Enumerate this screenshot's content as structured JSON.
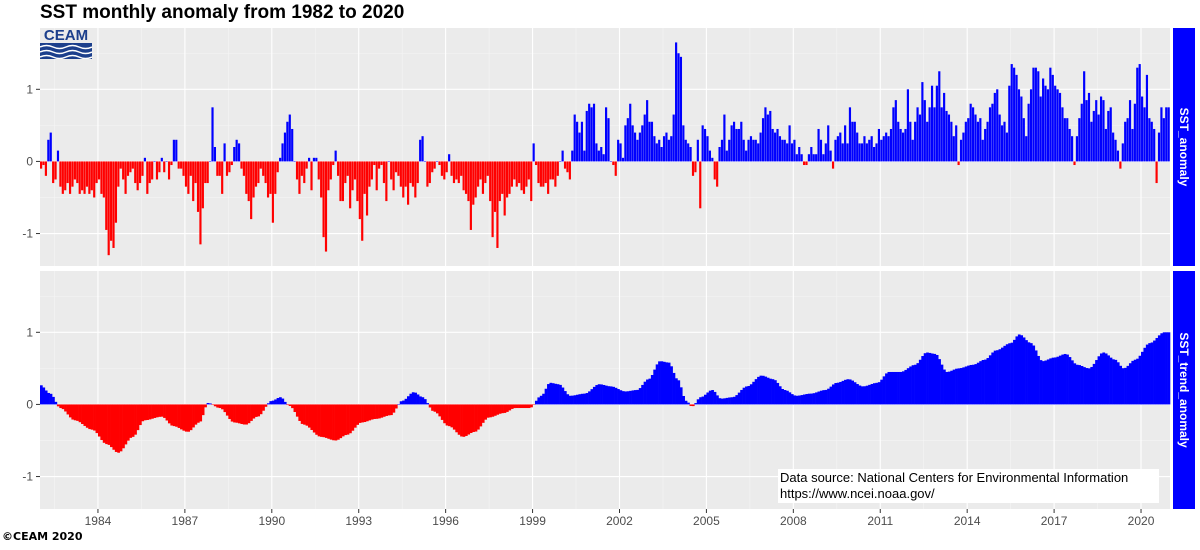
{
  "title": "SST monthly anomaly from 1982 to 2020",
  "logo_text": "CEAM",
  "copyright": "©CEAM 2020",
  "data_source": {
    "line1": "Data source: National Centers for Environmental Information",
    "line2": "https://www.ncei.noaa.gov/"
  },
  "colors": {
    "positive": "#0000ff",
    "negative": "#ff0000",
    "panel": "#ebebeb",
    "grid": "#ffffff",
    "strip": "#0000ff",
    "strip_text": "#ffffff",
    "logo": "#1c3f8c"
  },
  "chart_data": [
    {
      "type": "bar",
      "panel_label": "SST_anomaly",
      "x_start": 1982.0,
      "x_step_months": 1,
      "xlim": [
        1982.0,
        2021.0
      ],
      "ylim": [
        -1.45,
        1.85
      ],
      "y_ticks": [
        -1,
        0,
        1
      ],
      "y_tick_labels": [
        "-1",
        "0",
        "1"
      ],
      "grid": true,
      "monthly_values_by_year": {
        "1982": [
          -0.1,
          -0.05,
          -0.2,
          0.3,
          0.4,
          -0.3,
          -0.25,
          0.15,
          -0.35,
          -0.45,
          -0.4,
          -0.3
        ],
        "1983": [
          -0.45,
          -0.35,
          -0.25,
          -0.3,
          -0.45,
          -0.4,
          -0.45,
          -0.35,
          -0.45,
          -0.4,
          -0.5,
          -0.3
        ],
        "1984": [
          -0.25,
          -0.45,
          -0.5,
          -0.95,
          -1.3,
          -1.1,
          -1.2,
          -0.85,
          -0.35,
          -0.1,
          -0.25,
          -0.45
        ],
        "1985": [
          -0.2,
          -0.15,
          -0.1,
          -0.3,
          -0.4,
          -0.3,
          -0.2,
          0.05,
          -0.45,
          -0.3,
          -0.25,
          0.0
        ],
        "1986": [
          -0.25,
          -0.15,
          0.05,
          -0.15,
          0.0,
          -0.25,
          -0.05,
          0.3,
          0.3,
          -0.1,
          -0.1,
          -0.2
        ],
        "1987": [
          -0.35,
          -0.45,
          -0.2,
          -0.55,
          -0.3,
          -0.7,
          -1.15,
          -0.65,
          -0.3,
          -0.3,
          0.0,
          0.75
        ],
        "1988": [
          0.2,
          -0.2,
          -0.2,
          -0.45,
          0.25,
          -0.2,
          -0.15,
          -0.05,
          0.2,
          0.3,
          0.25,
          -0.1
        ],
        "1989": [
          -0.2,
          -0.45,
          -0.55,
          -0.8,
          -0.5,
          -0.35,
          -0.3,
          -0.1,
          -0.2,
          -0.3,
          -0.5,
          -0.45
        ],
        "1990": [
          -0.85,
          -0.45,
          -0.15,
          0.05,
          0.25,
          0.4,
          0.55,
          0.65,
          0.45,
          0.0,
          -0.25,
          -0.45
        ],
        "1991": [
          -0.2,
          -0.3,
          -0.1,
          0.05,
          -0.4,
          0.05,
          0.05,
          -0.25,
          -0.5,
          -1.05,
          -1.25,
          -0.4
        ],
        "1992": [
          -0.25,
          -0.05,
          0.15,
          -0.2,
          -0.55,
          -0.55,
          -0.3,
          -0.2,
          -0.65,
          -0.4,
          -0.25,
          -0.55
        ],
        "1993": [
          -0.8,
          -1.1,
          -0.45,
          -0.75,
          -0.35,
          -0.25,
          -0.05,
          -0.4,
          -0.1,
          -0.05,
          -0.3,
          -0.55
        ],
        "1994": [
          0.0,
          -0.25,
          -0.4,
          -0.15,
          -0.2,
          -0.35,
          -0.5,
          -0.35,
          -0.6,
          -0.3,
          -0.35,
          -0.5
        ],
        "1995": [
          -0.3,
          0.3,
          0.35,
          0.0,
          -0.35,
          -0.3,
          -0.15,
          -0.1,
          0.0,
          -0.05,
          -0.2,
          -0.25
        ],
        "1996": [
          -0.15,
          0.1,
          -0.2,
          -0.3,
          -0.25,
          -0.3,
          -0.2,
          -0.4,
          -0.45,
          -0.55,
          -0.95,
          -0.6
        ],
        "1997": [
          -0.5,
          -0.35,
          -0.25,
          -0.45,
          -0.3,
          -0.2,
          -0.55,
          -1.05,
          -0.7,
          -1.2,
          -0.55,
          -0.45
        ],
        "1998": [
          -0.75,
          -0.5,
          -0.45,
          -0.35,
          -0.25,
          -0.35,
          -0.3,
          -0.4,
          -0.45,
          -0.35,
          -0.25,
          -0.55
        ],
        "1999": [
          0.25,
          -0.05,
          -0.3,
          -0.35,
          -0.35,
          -0.3,
          -0.45,
          -0.25,
          -0.25,
          -0.35,
          -0.2,
          0.0
        ],
        "2000": [
          0.15,
          -0.1,
          -0.15,
          -0.25,
          0.15,
          0.65,
          0.55,
          0.4,
          0.55,
          0.15,
          0.7,
          0.8
        ],
        "2001": [
          0.75,
          0.8,
          0.25,
          0.15,
          0.2,
          0.1,
          0.75,
          0.6,
          0.0,
          -0.05,
          -0.2,
          0.3
        ],
        "2002": [
          0.25,
          0.05,
          0.5,
          0.6,
          0.8,
          0.5,
          0.4,
          0.3,
          0.4,
          0.5,
          0.65,
          0.85
        ],
        "2003": [
          0.55,
          0.55,
          0.35,
          0.25,
          0.3,
          0.2,
          0.35,
          0.4,
          0.3,
          0.35,
          0.65,
          1.65
        ],
        "2004": [
          1.5,
          1.45,
          0.5,
          0.3,
          0.25,
          0.2,
          -0.2,
          -0.15,
          0.3,
          -0.65,
          0.5,
          0.45
        ],
        "2005": [
          0.35,
          0.15,
          0.05,
          -0.25,
          -0.35,
          0.2,
          0.3,
          0.65,
          0.15,
          0.3,
          0.5,
          0.55
        ],
        "2006": [
          0.45,
          0.45,
          0.55,
          0.3,
          0.15,
          0.3,
          0.35,
          0.3,
          0.3,
          0.25,
          0.4,
          0.6
        ],
        "2007": [
          0.75,
          0.65,
          0.7,
          0.45,
          0.4,
          0.45,
          0.35,
          0.3,
          0.3,
          0.25,
          0.5,
          0.25
        ],
        "2008": [
          0.3,
          0.1,
          0.2,
          0.1,
          -0.05,
          -0.05,
          0.1,
          0.2,
          0.1,
          0.1,
          0.45,
          0.3
        ],
        "2009": [
          0.1,
          0.25,
          0.5,
          0.15,
          -0.1,
          0.3,
          0.35,
          0.4,
          0.25,
          0.5,
          0.25,
          0.75
        ],
        "2010": [
          0.55,
          0.55,
          0.4,
          0.25,
          0.25,
          0.35,
          0.25,
          0.3,
          0.35,
          0.2,
          0.25,
          0.45
        ],
        "2011": [
          0.3,
          0.35,
          0.4,
          0.35,
          0.45,
          0.75,
          0.85,
          0.55,
          0.45,
          0.4,
          0.45,
          1.0
        ],
        "2012": [
          0.55,
          0.3,
          0.55,
          0.75,
          0.65,
          1.1,
          0.85,
          0.55,
          0.75,
          1.05,
          0.75,
          1.05
        ],
        "2013": [
          1.25,
          0.75,
          0.95,
          0.7,
          0.65,
          0.55,
          0.35,
          0.5,
          -0.05,
          0.3,
          0.4,
          0.55
        ],
        "2014": [
          0.6,
          0.8,
          0.75,
          0.65,
          0.55,
          0.6,
          0.3,
          0.45,
          0.55,
          0.75,
          0.8,
          0.95
        ],
        "2015": [
          1.0,
          0.65,
          0.5,
          0.55,
          0.4,
          1.05,
          1.35,
          1.3,
          1.2,
          1.0,
          0.9,
          0.6
        ],
        "2016": [
          0.35,
          0.8,
          1.0,
          1.3,
          1.3,
          1.25,
          0.9,
          1.15,
          1.05,
          1.0,
          1.3,
          1.2
        ],
        "2017": [
          1.05,
          1.0,
          0.95,
          0.75,
          0.6,
          0.6,
          0.45,
          0.35,
          -0.05,
          0.35,
          0.6,
          0.8
        ],
        "2018": [
          1.25,
          0.85,
          0.95,
          0.55,
          0.7,
          0.85,
          0.65,
          0.9,
          0.85,
          0.45,
          0.7,
          0.75
        ],
        "2019": [
          0.4,
          0.3,
          0.15,
          -0.1,
          0.25,
          0.55,
          0.6,
          0.85,
          0.45,
          0.8,
          1.3,
          1.35
        ],
        "2020": [
          0.9,
          0.75,
          1.2,
          0.6,
          0.55,
          0.45,
          -0.3,
          0.4,
          0.75,
          0.6,
          0.75,
          0.75
        ]
      }
    },
    {
      "type": "area",
      "panel_label": "SST_trend_anomaly",
      "x_start": 1982.0,
      "x_step_months": 1,
      "xlim": [
        1982.0,
        2021.0
      ],
      "ylim": [
        -1.45,
        1.85
      ],
      "y_ticks": [
        -1,
        0,
        1
      ],
      "y_tick_labels": [
        "-1",
        "0",
        "1"
      ],
      "x_ticks": [
        1984,
        1987,
        1990,
        1993,
        1996,
        1999,
        2002,
        2005,
        2008,
        2011,
        2014,
        2017,
        2020
      ],
      "x_tick_labels": [
        "1984",
        "1987",
        "1990",
        "1993",
        "1996",
        "1999",
        "2002",
        "2005",
        "2008",
        "2011",
        "2014",
        "2017",
        "2020"
      ],
      "grid": true,
      "knots": [
        [
          1982.0,
          0.27
        ],
        [
          1982.35,
          0.15
        ],
        [
          1982.7,
          -0.05
        ],
        [
          1983.2,
          -0.22
        ],
        [
          1983.8,
          -0.35
        ],
        [
          1984.3,
          -0.55
        ],
        [
          1984.7,
          -0.67
        ],
        [
          1985.2,
          -0.45
        ],
        [
          1985.6,
          -0.22
        ],
        [
          1986.2,
          -0.17
        ],
        [
          1986.6,
          -0.3
        ],
        [
          1987.1,
          -0.38
        ],
        [
          1987.5,
          -0.25
        ],
        [
          1987.8,
          0.02
        ],
        [
          1988.2,
          -0.05
        ],
        [
          1988.7,
          -0.25
        ],
        [
          1989.1,
          -0.28
        ],
        [
          1989.5,
          -0.17
        ],
        [
          1990.0,
          0.05
        ],
        [
          1990.3,
          0.1
        ],
        [
          1990.6,
          -0.02
        ],
        [
          1991.1,
          -0.28
        ],
        [
          1991.7,
          -0.45
        ],
        [
          1992.2,
          -0.5
        ],
        [
          1992.6,
          -0.42
        ],
        [
          1993.1,
          -0.25
        ],
        [
          1993.6,
          -0.2
        ],
        [
          1994.1,
          -0.15
        ],
        [
          1994.5,
          0.05
        ],
        [
          1994.9,
          0.17
        ],
        [
          1995.2,
          0.1
        ],
        [
          1995.6,
          -0.1
        ],
        [
          1996.1,
          -0.3
        ],
        [
          1996.6,
          -0.45
        ],
        [
          1997.0,
          -0.38
        ],
        [
          1997.5,
          -0.18
        ],
        [
          1998.0,
          -0.12
        ],
        [
          1998.4,
          -0.05
        ],
        [
          1998.9,
          -0.05
        ],
        [
          1999.3,
          0.12
        ],
        [
          1999.6,
          0.3
        ],
        [
          1999.9,
          0.28
        ],
        [
          2000.3,
          0.12
        ],
        [
          2000.8,
          0.15
        ],
        [
          2001.3,
          0.28
        ],
        [
          2001.7,
          0.25
        ],
        [
          2002.2,
          0.18
        ],
        [
          2002.6,
          0.2
        ],
        [
          2003.0,
          0.35
        ],
        [
          2003.4,
          0.6
        ],
        [
          2003.7,
          0.58
        ],
        [
          2004.0,
          0.35
        ],
        [
          2004.3,
          0.05
        ],
        [
          2004.5,
          -0.03
        ],
        [
          2004.8,
          0.1
        ],
        [
          2005.2,
          0.2
        ],
        [
          2005.5,
          0.08
        ],
        [
          2005.9,
          0.1
        ],
        [
          2006.4,
          0.25
        ],
        [
          2006.9,
          0.4
        ],
        [
          2007.3,
          0.35
        ],
        [
          2007.7,
          0.2
        ],
        [
          2008.1,
          0.12
        ],
        [
          2008.6,
          0.15
        ],
        [
          2009.1,
          0.2
        ],
        [
          2009.5,
          0.3
        ],
        [
          2009.9,
          0.35
        ],
        [
          2010.4,
          0.25
        ],
        [
          2010.9,
          0.3
        ],
        [
          2011.3,
          0.45
        ],
        [
          2011.7,
          0.45
        ],
        [
          2012.2,
          0.55
        ],
        [
          2012.6,
          0.72
        ],
        [
          2012.9,
          0.7
        ],
        [
          2013.3,
          0.45
        ],
        [
          2013.7,
          0.5
        ],
        [
          2014.2,
          0.55
        ],
        [
          2014.6,
          0.62
        ],
        [
          2015.0,
          0.75
        ],
        [
          2015.5,
          0.85
        ],
        [
          2015.8,
          0.97
        ],
        [
          2016.2,
          0.85
        ],
        [
          2016.6,
          0.6
        ],
        [
          2017.0,
          0.65
        ],
        [
          2017.4,
          0.7
        ],
        [
          2017.8,
          0.55
        ],
        [
          2018.2,
          0.5
        ],
        [
          2018.7,
          0.72
        ],
        [
          2019.1,
          0.62
        ],
        [
          2019.4,
          0.5
        ],
        [
          2019.8,
          0.62
        ],
        [
          2020.3,
          0.85
        ],
        [
          2020.8,
          1.0
        ],
        [
          2021.0,
          1.0
        ]
      ]
    }
  ]
}
